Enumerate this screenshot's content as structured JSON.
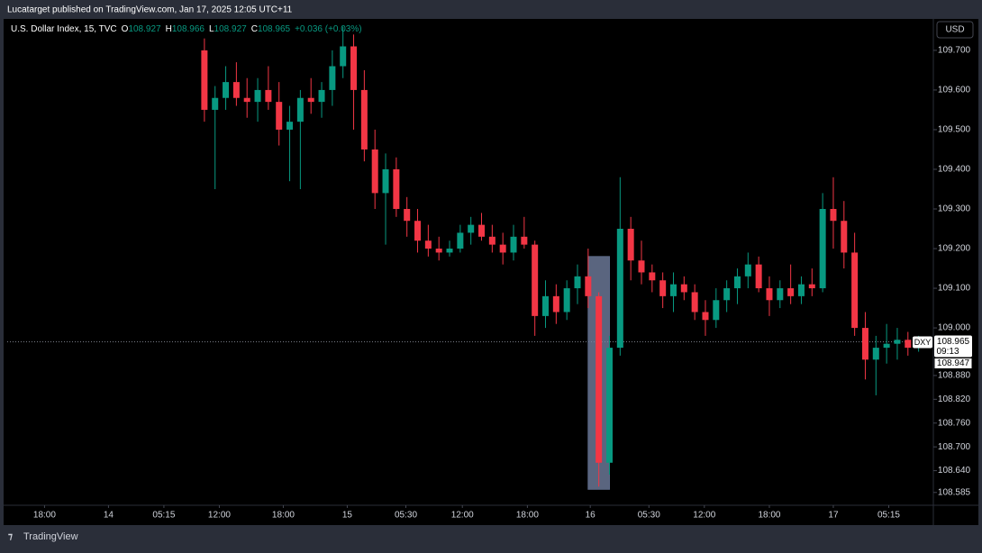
{
  "header": {
    "publisher": "Lucatarget published on TradingView.com, Jan 17, 2025 12:05 UTC+11"
  },
  "footer": {
    "brand": "TradingView"
  },
  "currency_button": "USD",
  "chart_data": {
    "type": "candlestick",
    "symbol": "U.S. Dollar Index, 15, TVC",
    "legend": [
      {
        "label": "O",
        "value": 108.927
      },
      {
        "label": "H",
        "value": 108.966
      },
      {
        "label": "L",
        "value": 108.927
      },
      {
        "label": "C",
        "value": 108.965
      }
    ],
    "change": "+0.036 (+0.03%)",
    "up_color": "#089981",
    "down_color": "#f23645",
    "ylim": [
      108.555,
      109.777
    ],
    "yticks": [
      {
        "value": 109.7,
        "label": "109.700"
      },
      {
        "value": 109.6,
        "label": "109.600"
      },
      {
        "value": 109.5,
        "label": "109.500"
      },
      {
        "value": 109.4,
        "label": "109.400"
      },
      {
        "value": 109.3,
        "label": "109.300"
      },
      {
        "value": 109.2,
        "label": "109.200"
      },
      {
        "value": 109.1,
        "label": "109.100"
      },
      {
        "value": 109,
        "label": "109.000"
      },
      {
        "value": 108.88,
        "label": "108.880"
      },
      {
        "value": 108.82,
        "label": "108.820"
      },
      {
        "value": 108.76,
        "label": "108.760"
      },
      {
        "value": 108.7,
        "label": "108.700"
      },
      {
        "value": 108.64,
        "label": "108.640"
      },
      108.585
    ],
    "xlim": [
      0,
      86.8
    ],
    "xticks": [
      {
        "value": 3.5,
        "label": "18:00"
      },
      {
        "value": 9.5,
        "label": "14"
      },
      {
        "value": 14.7,
        "label": "05:15"
      },
      {
        "value": 19.9,
        "label": "12:00"
      },
      {
        "value": 25.9,
        "label": "18:00"
      },
      {
        "value": 31.9,
        "label": "15"
      },
      {
        "value": 37.4,
        "label": "05:30"
      },
      {
        "value": 42.7,
        "label": "12:00"
      },
      {
        "value": 48.8,
        "label": "18:00"
      },
      {
        "value": 54.7,
        "label": "16"
      },
      {
        "value": 60.2,
        "label": "05:30"
      },
      {
        "value": 65.4,
        "label": "12:00"
      },
      {
        "value": 71.5,
        "label": "18:00"
      },
      {
        "value": 77.5,
        "label": "17"
      },
      {
        "value": 82.7,
        "label": "05:15"
      }
    ],
    "x": [
      18.5,
      19.5,
      20.5,
      21.5,
      22.5,
      23.5,
      24.5,
      25.5,
      26.5,
      27.5,
      28.5,
      29.5,
      30.5,
      31.5,
      32.5,
      33.5,
      34.5,
      35.5,
      36.5,
      37.5,
      38.5,
      39.5,
      40.5,
      41.5,
      42.5,
      43.5,
      44.5,
      45.5,
      46.5,
      47.5,
      48.5,
      49.5,
      50.5,
      51.5,
      52.5,
      53.5,
      54.5,
      55.5,
      56.5,
      57.5,
      58.5,
      59.5,
      60.5,
      61.5,
      62.5,
      63.5,
      64.5,
      65.5,
      66.5,
      67.5,
      68.5,
      69.5,
      70.5,
      71.5,
      72.5,
      73.5,
      74.5,
      75.5,
      76.5,
      77.5,
      78.5,
      79.5,
      80.5,
      81.5,
      82.5,
      83.5,
      84.5,
      85.5
    ],
    "open": [
      109.7,
      109.55,
      109.58,
      109.62,
      109.58,
      109.57,
      109.6,
      109.57,
      109.5,
      109.52,
      109.58,
      109.57,
      109.6,
      109.66,
      109.71,
      109.6,
      109.45,
      109.34,
      109.4,
      109.3,
      109.27,
      109.22,
      109.2,
      109.19,
      109.2,
      109.24,
      109.26,
      109.23,
      109.21,
      109.19,
      109.23,
      109.21,
      109.03,
      109.08,
      109.04,
      109.1,
      109.13,
      109.08,
      108.66,
      108.95,
      109.25,
      109.17,
      109.14,
      109.12,
      109.08,
      109.11,
      109.09,
      109.04,
      109.02,
      109.07,
      109.1,
      109.13,
      109.16,
      109.1,
      109.07,
      109.1,
      109.08,
      109.11,
      109.1,
      109.3,
      109.27,
      109.19,
      109.0,
      108.92,
      108.95,
      108.96,
      108.97,
      108.95
    ],
    "high": [
      109.73,
      109.61,
      109.66,
      109.67,
      109.63,
      109.63,
      109.66,
      109.62,
      109.56,
      109.6,
      109.63,
      109.62,
      109.7,
      109.76,
      109.74,
      109.65,
      109.5,
      109.44,
      109.43,
      109.33,
      109.3,
      109.26,
      109.23,
      109.22,
      109.26,
      109.28,
      109.29,
      109.26,
      109.24,
      109.26,
      109.28,
      109.22,
      109.12,
      109.11,
      109.12,
      109.16,
      109.2,
      109.09,
      108.98,
      109.38,
      109.28,
      109.22,
      109.16,
      109.14,
      109.14,
      109.13,
      109.11,
      109.07,
      109.1,
      109.12,
      109.15,
      109.19,
      109.18,
      109.13,
      109.12,
      109.16,
      109.13,
      109.15,
      109.34,
      109.38,
      109.32,
      109.24,
      109.04,
      108.98,
      109.01,
      109.0,
      108.99,
      108.98
    ],
    "low": [
      109.52,
      109.35,
      109.55,
      109.56,
      109.53,
      109.52,
      109.55,
      109.46,
      109.37,
      109.35,
      109.54,
      109.53,
      109.56,
      109.63,
      109.5,
      109.42,
      109.3,
      109.21,
      109.28,
      109.23,
      109.19,
      109.18,
      109.17,
      109.18,
      109.19,
      109.21,
      109.22,
      109.19,
      109.16,
      109.17,
      109.2,
      108.98,
      109.0,
      109.01,
      109.02,
      109.06,
      109.05,
      108.6,
      108.63,
      108.93,
      109.12,
      109.11,
      109.09,
      109.05,
      109.04,
      109.07,
      109.02,
      108.98,
      109.0,
      109.04,
      109.06,
      109.1,
      109.09,
      109.03,
      109.05,
      109.06,
      109.06,
      109.08,
      109.09,
      109.2,
      109.15,
      108.98,
      108.87,
      108.83,
      108.91,
      108.92,
      108.93,
      108.94
    ],
    "close": [
      109.55,
      109.58,
      109.62,
      109.58,
      109.57,
      109.6,
      109.57,
      109.5,
      109.52,
      109.58,
      109.57,
      109.6,
      109.66,
      109.71,
      109.6,
      109.45,
      109.34,
      109.4,
      109.3,
      109.27,
      109.22,
      109.2,
      109.19,
      109.2,
      109.24,
      109.26,
      109.23,
      109.21,
      109.19,
      109.23,
      109.21,
      109.03,
      109.08,
      109.04,
      109.1,
      109.13,
      109.08,
      108.66,
      108.95,
      109.25,
      109.17,
      109.14,
      109.12,
      109.08,
      109.11,
      109.09,
      109.04,
      109.02,
      109.07,
      109.1,
      109.13,
      109.16,
      109.1,
      109.07,
      109.1,
      109.08,
      109.11,
      109.1,
      109.3,
      109.27,
      109.19,
      109.0,
      108.92,
      108.95,
      108.96,
      108.97,
      108.95,
      108.965
    ],
    "highlight_box": {
      "xrange": [
        54.5,
        56.5
      ],
      "yrange": [
        108.593,
        109.18
      ]
    },
    "price_tags": {
      "symbol": "DXY",
      "last": 108.965,
      "countdown": "09:13",
      "other": 108.947
    }
  }
}
